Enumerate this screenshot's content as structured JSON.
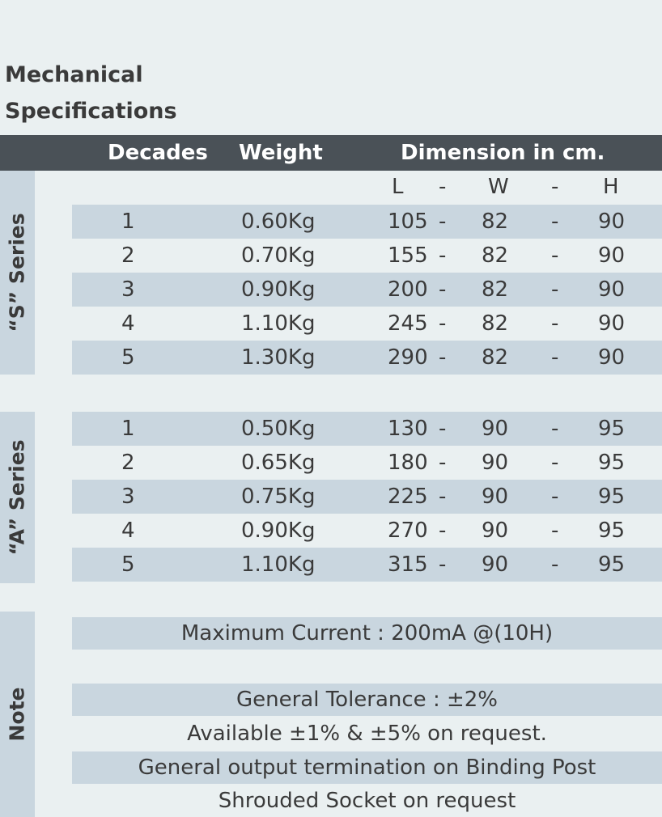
{
  "title": {
    "line1": "Mechanical",
    "line2": "Specifications"
  },
  "header": {
    "decades": "Decades",
    "weight": "Weight",
    "dimension": "Dimension in cm."
  },
  "subheader": {
    "l": "L",
    "dash1": "-",
    "w": "W",
    "dash2": "-",
    "h": "H"
  },
  "s_series": {
    "label": "“S” Series",
    "rows": [
      {
        "decades": "1",
        "weight": "0.60Kg",
        "l": "105",
        "dash1": "-",
        "w": "82",
        "dash2": "-",
        "h": "90"
      },
      {
        "decades": "2",
        "weight": "0.70Kg",
        "l": "155",
        "dash1": "-",
        "w": "82",
        "dash2": "-",
        "h": "90"
      },
      {
        "decades": "3",
        "weight": "0.90Kg",
        "l": "200",
        "dash1": "-",
        "w": "82",
        "dash2": "-",
        "h": "90"
      },
      {
        "decades": "4",
        "weight": "1.10Kg",
        "l": "245",
        "dash1": "-",
        "w": "82",
        "dash2": "-",
        "h": "90"
      },
      {
        "decades": "5",
        "weight": "1.30Kg",
        "l": "290",
        "dash1": "-",
        "w": "82",
        "dash2": "-",
        "h": "90"
      }
    ]
  },
  "a_series": {
    "label": "“A” Series",
    "rows": [
      {
        "decades": "1",
        "weight": "0.50Kg",
        "l": "130",
        "dash1": "-",
        "w": "90",
        "dash2": "-",
        "h": "95"
      },
      {
        "decades": "2",
        "weight": "0.65Kg",
        "l": "180",
        "dash1": "-",
        "w": "90",
        "dash2": "-",
        "h": "95"
      },
      {
        "decades": "3",
        "weight": "0.75Kg",
        "l": "225",
        "dash1": "-",
        "w": "90",
        "dash2": "-",
        "h": "95"
      },
      {
        "decades": "4",
        "weight": "0.90Kg",
        "l": "270",
        "dash1": "-",
        "w": "90",
        "dash2": "-",
        "h": "95"
      },
      {
        "decades": "5",
        "weight": "1.10Kg",
        "l": "315",
        "dash1": "-",
        "w": "90",
        "dash2": "-",
        "h": "95"
      }
    ]
  },
  "note": {
    "label": "Note",
    "max_current": "Maximum Current : 200mA @(10H)",
    "tolerance": "General Tolerance :  ±2%",
    "available": "Available ±1% & ±5% on request.",
    "termination": "General output termination on Binding Post",
    "socket": "Shrouded Socket on request"
  },
  "colors": {
    "page_bg": "#eaf0f1",
    "header_bg": "#4a5157",
    "row_shade": "#c9d6df",
    "text": "#3a3a3a"
  }
}
